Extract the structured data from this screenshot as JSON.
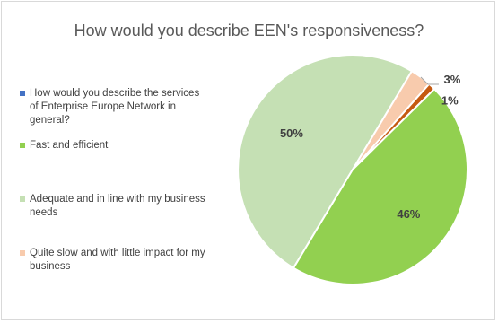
{
  "chart_data": {
    "type": "pie",
    "title": "How would you describe EEN's responsiveness?",
    "legend_position": "left",
    "slices": [
      {
        "label": "How would you describe the services of Enterprise Europe Network in general?",
        "value": 0,
        "color": "#4472c4",
        "display": ""
      },
      {
        "label": "Fast and efficient",
        "value": 46,
        "color": "#92d050",
        "display": "46%"
      },
      {
        "label": "Adequate and in line with my business needs",
        "value": 50,
        "color": "#c5e0b4",
        "display": "50%"
      },
      {
        "label": "Quite slow and with little impact for my business",
        "value": 3,
        "color": "#f8cbad",
        "display": "3%"
      },
      {
        "label": "",
        "value": 1,
        "color": "#c55a11",
        "display": "1%"
      }
    ]
  }
}
